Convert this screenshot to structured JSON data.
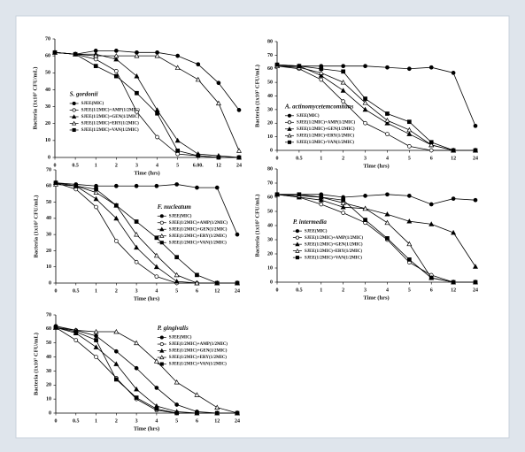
{
  "chart_data": [
    {
      "type": "line",
      "title": "S. gordonii",
      "x_label": "Time (hrs)",
      "y_label": "Bacteria (1x10⁷ CFU/mL)",
      "legend": "center-left",
      "categories": [
        "0",
        "0.5",
        "1",
        "2",
        "3",
        "4",
        "5",
        "6.00.",
        "12",
        "24"
      ],
      "ylim": [
        0,
        70
      ],
      "yticks": [
        0,
        10,
        20,
        30,
        40,
        50,
        60,
        70
      ],
      "series": [
        {
          "name": "SJEE(MIC)",
          "color": "#000000",
          "marker": "circle",
          "values": [
            62,
            61,
            63,
            63,
            62,
            62,
            60,
            55,
            44,
            28
          ]
        },
        {
          "name": "SJEE(1/2MIC)+AMP(1/2MIC)",
          "color": "#000000",
          "marker": "circle-open",
          "values": [
            62,
            61,
            58,
            51,
            27,
            12,
            2,
            1,
            0,
            0
          ]
        },
        {
          "name": "SJEE(1/2MIC)+GEN(1/2MIC)",
          "color": "#000000",
          "marker": "triangle",
          "values": [
            62,
            61,
            61,
            58,
            48,
            28,
            10,
            2,
            1,
            0
          ]
        },
        {
          "name": "SJEE(1/2MIC)+ERY(1/2MIC)",
          "color": "#000000",
          "marker": "triangle-open",
          "values": [
            62,
            61,
            60,
            60,
            60,
            60,
            53,
            46,
            32,
            4
          ]
        },
        {
          "name": "SJEE(1/2MIC)+VAN(1/2MIC)",
          "color": "#000000",
          "marker": "square",
          "values": [
            62,
            61,
            54,
            48,
            38,
            26,
            4,
            1,
            0,
            0
          ]
        }
      ]
    },
    {
      "type": "line",
      "title": "A. actinomycetemcomitans",
      "x_label": "Time (hrs)",
      "y_label": "Bacteria (1x10⁷ CFU/mL)",
      "legend": "lower-left",
      "categories": [
        "0",
        "0.5",
        "1",
        "2",
        "3",
        "4",
        "5",
        "6",
        "12",
        "24"
      ],
      "ylim": [
        0,
        80
      ],
      "yticks": [
        0,
        10,
        20,
        30,
        40,
        50,
        60,
        70,
        80
      ],
      "series": [
        {
          "name": "SJEE(MIC)",
          "color": "#000000",
          "marker": "circle",
          "values": [
            63,
            62,
            62,
            62,
            62,
            61,
            60,
            61,
            57,
            18
          ]
        },
        {
          "name": "SJEE(1/2MIC)+AMP(1/2MIC)",
          "color": "#000000",
          "marker": "circle-open",
          "values": [
            62,
            60,
            52,
            36,
            20,
            12,
            3,
            0,
            0,
            0
          ]
        },
        {
          "name": "SJEE(1/2MIC)+GEN(1/2MIC)",
          "color": "#000000",
          "marker": "triangle",
          "values": [
            62,
            62,
            55,
            44,
            30,
            20,
            12,
            4,
            0,
            0
          ]
        },
        {
          "name": "SJEE(1/2MIC)+ERY(1/2MIC)",
          "color": "#000000",
          "marker": "triangle-open",
          "values": [
            62,
            61,
            57,
            50,
            35,
            22,
            15,
            4,
            0,
            0
          ]
        },
        {
          "name": "SJEE(1/2MIC)+VAN(1/2MIC)",
          "color": "#000000",
          "marker": "square",
          "values": [
            63,
            62,
            60,
            58,
            38,
            27,
            21,
            6,
            0,
            0
          ]
        }
      ]
    },
    {
      "type": "line",
      "title": "F. nucleatum",
      "x_label": "Time (hrs)",
      "y_label": "Bacteria (1x10⁷ CFU/mL)",
      "legend": "center-right",
      "categories": [
        "0",
        "0.5",
        "1",
        "2",
        "3",
        "4",
        "5",
        "6",
        "12",
        "24"
      ],
      "ylim": [
        0,
        70
      ],
      "yticks": [
        0,
        10,
        20,
        30,
        40,
        50,
        60,
        70
      ],
      "series": [
        {
          "name": "SJEE(MIC)",
          "color": "#000000",
          "marker": "circle",
          "values": [
            62,
            61,
            60,
            60,
            60,
            60,
            61,
            59,
            59,
            30
          ]
        },
        {
          "name": "SJEE(1/2MIC)+AMP(1/2MIC)",
          "color": "#000000",
          "marker": "circle-open",
          "values": [
            62,
            58,
            47,
            26,
            13,
            4,
            0,
            0,
            0,
            0
          ]
        },
        {
          "name": "SJEE(1/2MIC)+GEN(1/2MIC)",
          "color": "#000000",
          "marker": "triangle",
          "values": [
            62,
            60,
            52,
            40,
            22,
            10,
            1,
            0,
            0,
            0
          ]
        },
        {
          "name": "SJEE(1/2MIC)+ERY(1/2MIC)",
          "color": "#000000",
          "marker": "triangle-open",
          "values": [
            61,
            60,
            56,
            48,
            30,
            17,
            5,
            0,
            0,
            0
          ]
        },
        {
          "name": "SJEE(1/2MIC)+VAN(1/2MIC)",
          "color": "#000000",
          "marker": "square",
          "values": [
            62,
            60,
            58,
            48,
            38,
            28,
            16,
            5,
            0,
            0
          ]
        }
      ]
    },
    {
      "type": "line",
      "title": "P. intermedia",
      "x_label": "Time (hrs)",
      "y_label": "Bacteria (1x10⁷ CFU/mL)",
      "legend": "center-left",
      "categories": [
        "0",
        "0.5",
        "1",
        "2",
        "3",
        "4",
        "5",
        "6",
        "12",
        "24"
      ],
      "ylim": [
        0,
        80
      ],
      "yticks": [
        0,
        10,
        20,
        30,
        40,
        50,
        60,
        70,
        80
      ],
      "series": [
        {
          "name": "SJEE(MIC)",
          "color": "#000000",
          "marker": "circle",
          "values": [
            62,
            62,
            62,
            60,
            61,
            62,
            61,
            55,
            59,
            58
          ]
        },
        {
          "name": "SJEE(1/2MIC)+AMP(1/2MIC)",
          "color": "#000000",
          "marker": "circle-open",
          "values": [
            62,
            60,
            55,
            49,
            42,
            30,
            14,
            5,
            0,
            0
          ]
        },
        {
          "name": "SJEE(1/2MIC)+GEN(1/2MIC)",
          "color": "#000000",
          "marker": "triangle",
          "values": [
            62,
            60,
            58,
            53,
            52,
            48,
            43,
            41,
            35,
            11
          ]
        },
        {
          "name": "SJEE(1/2MIC)+ERY(1/2MIC)",
          "color": "#000000",
          "marker": "triangle-open",
          "values": [
            62,
            61,
            60,
            56,
            52,
            42,
            27,
            3,
            0,
            0
          ]
        },
        {
          "name": "SJEE(1/2MIC)+VAN(1/2MIC)",
          "color": "#000000",
          "marker": "square",
          "values": [
            62,
            62,
            60,
            58,
            44,
            31,
            16,
            3,
            0,
            0
          ]
        }
      ]
    },
    {
      "type": "line",
      "title": "P. gingivalis",
      "x_label": "Time (hrs)",
      "y_label": "Bacteria (1x10⁷ CFU/mL)",
      "legend": "upper-right",
      "categories": [
        "0",
        "0.5",
        "1",
        "2",
        "3",
        "4",
        "5",
        "6",
        "12",
        "24"
      ],
      "ylim": [
        0,
        70
      ],
      "yticks": [
        0,
        10,
        20,
        30,
        40,
        50,
        60,
        70
      ],
      "series": [
        {
          "name": "SJEE(MIC)",
          "color": "#000000",
          "marker": "circle",
          "values": [
            62,
            59,
            55,
            44,
            32,
            18,
            6,
            1,
            0,
            0
          ]
        },
        {
          "name": "SJEE(1/2MIC)+AMP(1/2MIC)",
          "color": "#000000",
          "marker": "circle-open",
          "values": [
            61,
            52,
            40,
            25,
            10,
            2,
            0,
            0,
            0,
            0
          ]
        },
        {
          "name": "SJEE(1/2MIC)+GEN(1/2MIC)",
          "color": "#000000",
          "marker": "triangle",
          "values": [
            61,
            57,
            47,
            35,
            17,
            5,
            1,
            0,
            0,
            0
          ]
        },
        {
          "name": "SJEE(1/2MIC)+ERY(1/2MIC)",
          "color": "#000000",
          "marker": "triangle-open",
          "values": [
            61,
            59,
            58,
            58,
            50,
            37,
            22,
            13,
            4,
            0
          ]
        },
        {
          "name": "SJEE(1/2MIC)+VAN(1/2MIC)",
          "color": "#000000",
          "marker": "square",
          "values": [
            61,
            58,
            52,
            24,
            11,
            3,
            0,
            0,
            0,
            0
          ]
        }
      ]
    }
  ]
}
